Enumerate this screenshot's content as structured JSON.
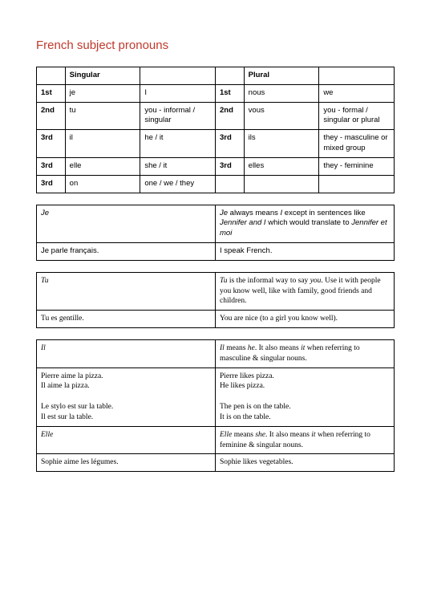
{
  "title": "French subject pronouns",
  "table1": {
    "header": [
      "",
      "Singular",
      "",
      "",
      "Plural",
      ""
    ],
    "rows": [
      [
        "1st",
        "je",
        "I",
        "1st",
        "nous",
        "we"
      ],
      [
        "2nd",
        "tu",
        "you - informal / singular",
        "2nd",
        "vous",
        "you - formal / singular or plural"
      ],
      [
        "3rd",
        "il",
        "he / it",
        "3rd",
        "ils",
        "they - masculine or mixed group"
      ],
      [
        "3rd",
        "elle",
        "she / it",
        "3rd",
        "elles",
        "they - feminine"
      ],
      [
        "3rd",
        "on",
        "one / we / they",
        "",
        "",
        ""
      ]
    ]
  },
  "table2": {
    "rows": [
      {
        "left_italic": "Je",
        "left_rest": "",
        "right_pre": "",
        "right_italic1": "Je",
        "right_mid": " always means ",
        "right_italic2": "I",
        "right_mid2": " except in sentences like ",
        "right_italic3": "Jennifer and I",
        "right_mid3": " which would translate to ",
        "right_italic4": "Jennifer et moi",
        "right_end": ""
      },
      {
        "left": "Je parle français.",
        "right": "I speak French."
      }
    ]
  },
  "table3": {
    "rows": [
      {
        "left_italic": "Tu",
        "right_italic1": "Tu",
        "right_mid": " is the informal way to say ",
        "right_italic2": "you",
        "right_end": ". Use it with people you know well, like with family, good friends and children."
      },
      {
        "left": "Tu es gentille.",
        "right": "You are nice (to a girl you know well)."
      }
    ]
  },
  "table4": {
    "rows": [
      {
        "left_italic": "Il",
        "right_italic1": "Il",
        "right_mid": " means ",
        "right_italic2": "he",
        "right_mid2": ". It also means ",
        "right_italic3": "it",
        "right_end": " when referring to masculine & singular nouns."
      },
      {
        "left": "Pierre aime la pizza.\nIl aime la pizza.\n\nLe stylo est sur la table.\nIl est sur la table.",
        "right": "Pierre likes pizza.\nHe likes pizza.\n\nThe pen is on the table.\nIt is on the table."
      },
      {
        "left_italic": "Elle",
        "right_italic1": "Elle",
        "right_mid": " means ",
        "right_italic2": "she",
        "right_mid2": ". It also means ",
        "right_italic3": "it",
        "right_end": " when referring to feminine & singular nouns."
      },
      {
        "left": "Sophie aime les légumes.",
        "right": "Sophie likes vegetables."
      }
    ]
  },
  "colors": {
    "title": "#c0392b",
    "text": "#000000",
    "border": "#000000",
    "background": "#ffffff"
  }
}
